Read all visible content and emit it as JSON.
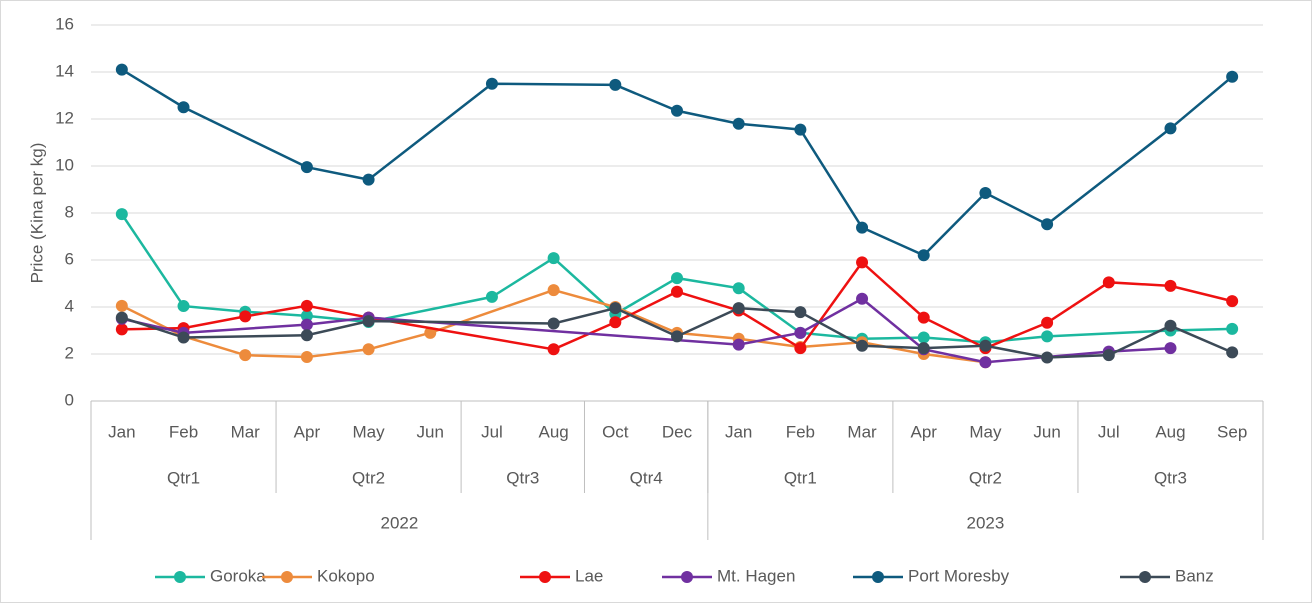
{
  "chart_data": {
    "type": "line",
    "y_label": "Price (Kina per kg)",
    "categories": [
      "Jan",
      "Feb",
      "Mar",
      "Apr",
      "May",
      "Jun",
      "Jul",
      "Aug",
      "Oct",
      "Dec",
      "Jan",
      "Feb",
      "Mar",
      "Apr",
      "May",
      "Jun",
      "Jul",
      "Aug",
      "Sep"
    ],
    "x_groups": [
      {
        "labels": [
          "Qtr1",
          "Qtr2",
          "Qtr3",
          "Qtr4",
          "Qtr1",
          "Qtr2",
          "Qtr3"
        ],
        "counts": [
          3,
          3,
          2,
          2,
          3,
          3,
          3
        ]
      },
      {
        "labels": [
          "2022",
          "2023"
        ],
        "counts": [
          10,
          9
        ]
      }
    ],
    "ylim": [
      0,
      16
    ],
    "yticks": [
      0,
      2,
      4,
      6,
      8,
      10,
      12,
      14,
      16
    ],
    "grid": true,
    "connect_gaps": true,
    "legend": "bottom",
    "series": [
      {
        "name": "Goroka",
        "color": "#1cb89f",
        "values": [
          7.95,
          4.04,
          3.8,
          3.62,
          3.36,
          null,
          4.43,
          6.08,
          3.7,
          5.23,
          4.8,
          2.9,
          2.65,
          2.7,
          2.5,
          2.75,
          null,
          3.0,
          3.07
        ]
      },
      {
        "name": "Kokopo",
        "color": "#ed8b3c",
        "values": [
          4.05,
          2.75,
          1.95,
          1.87,
          2.2,
          2.9,
          null,
          4.72,
          4.0,
          2.9,
          2.65,
          2.3,
          2.5,
          2.0,
          1.65,
          null,
          null,
          null,
          null
        ]
      },
      {
        "name": "Lae",
        "color": "#ee1111",
        "values": [
          3.05,
          3.1,
          3.6,
          4.05,
          3.55,
          null,
          null,
          2.2,
          3.35,
          4.65,
          3.85,
          2.25,
          5.9,
          3.55,
          2.25,
          3.33,
          5.05,
          4.9,
          4.25
        ]
      },
      {
        "name": "Mt. Hagen",
        "color": "#7030a0",
        "values": [
          3.5,
          2.9,
          null,
          3.25,
          3.55,
          null,
          null,
          null,
          null,
          null,
          2.4,
          2.9,
          4.35,
          2.2,
          1.65,
          null,
          2.1,
          2.25,
          null
        ]
      },
      {
        "name": "Port Moresby",
        "color": "#0e5a7e",
        "values": [
          14.1,
          12.5,
          null,
          9.95,
          9.42,
          null,
          13.5,
          null,
          13.45,
          12.35,
          11.8,
          11.55,
          7.38,
          6.2,
          8.85,
          7.52,
          null,
          11.6,
          13.8
        ]
      },
      {
        "name": "Banz",
        "color": "#3c4a57",
        "values": [
          3.55,
          2.7,
          null,
          2.8,
          3.4,
          null,
          null,
          3.3,
          3.95,
          2.75,
          3.95,
          3.78,
          2.35,
          2.25,
          2.35,
          1.85,
          1.95,
          3.2,
          2.07
        ]
      }
    ]
  }
}
